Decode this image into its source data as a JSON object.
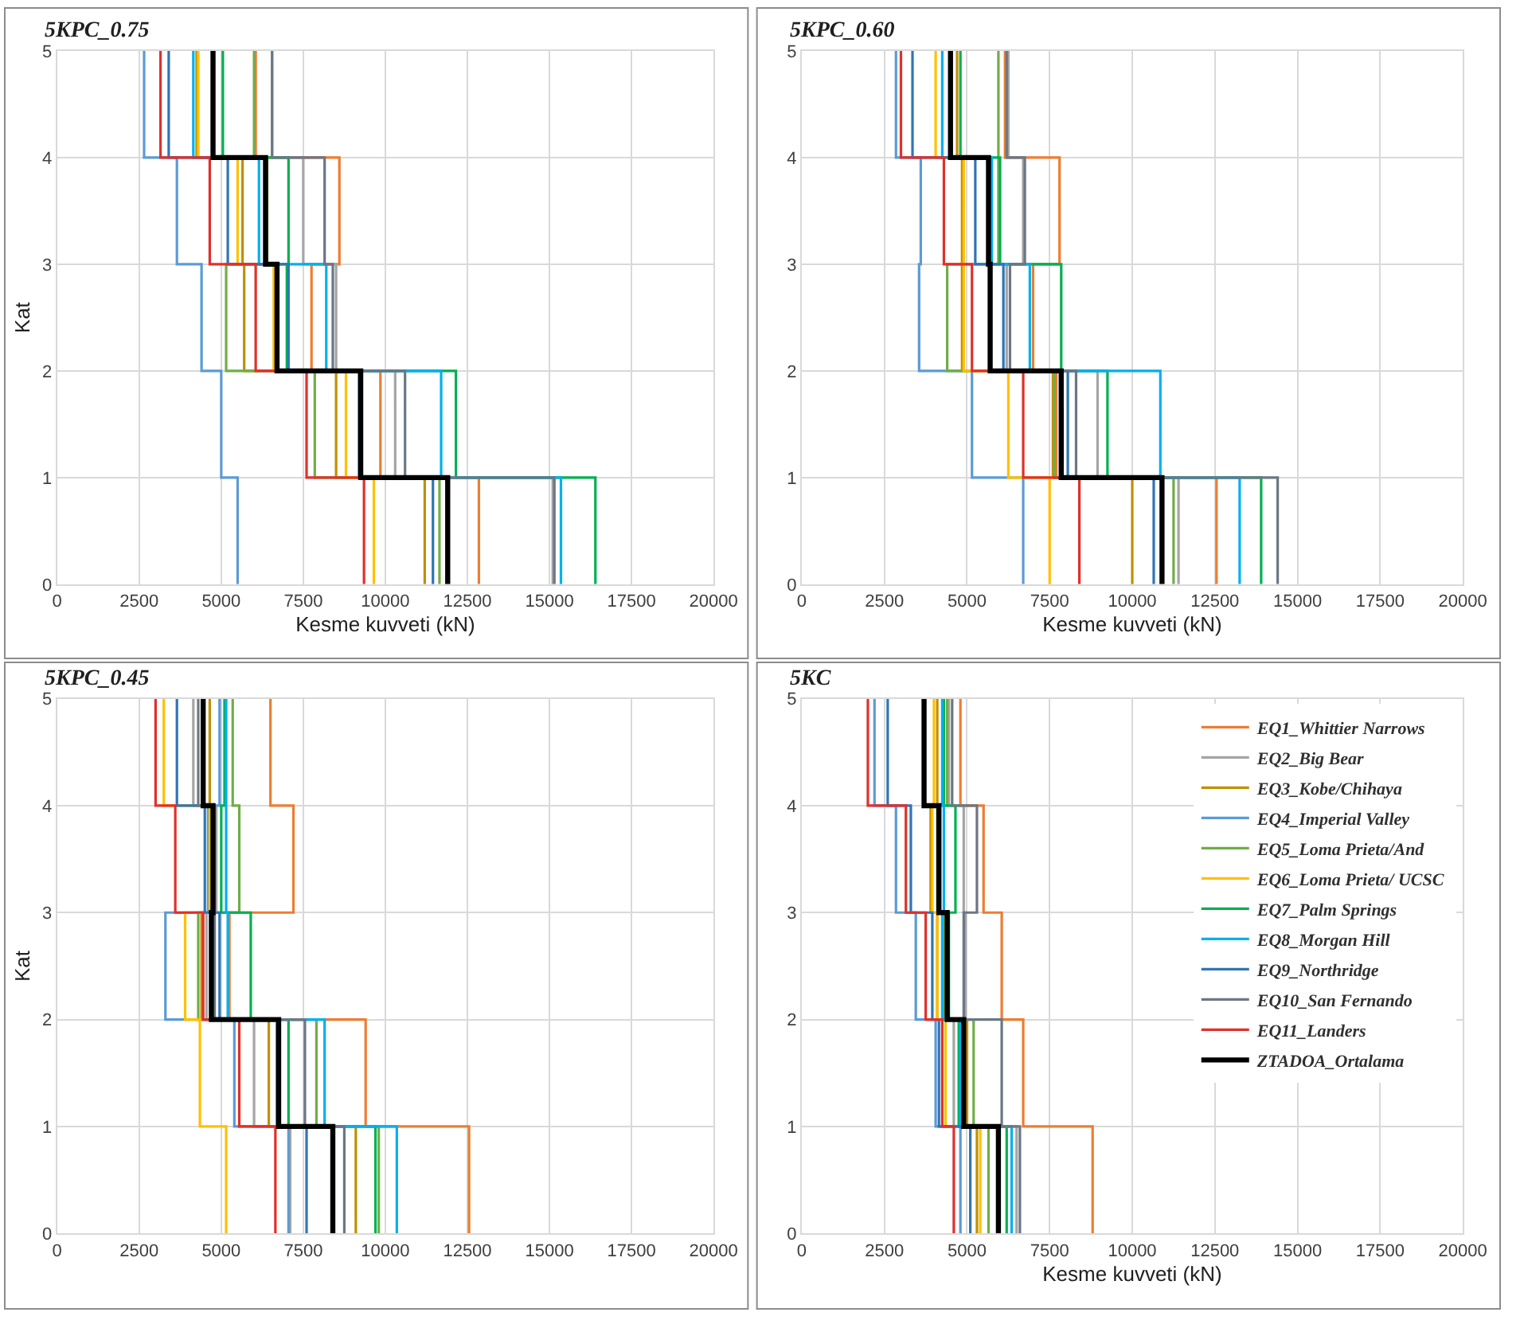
{
  "chart_data": [
    {
      "type": "line",
      "title": "5KPC_0.75",
      "xlabel": "Kesme kuvveti (kN)",
      "ylabel": "Kat",
      "xlim": [
        0,
        20000
      ],
      "xticks": [
        0,
        2500,
        5000,
        7500,
        10000,
        12500,
        15000,
        17500,
        20000
      ],
      "ylim": [
        0,
        5
      ],
      "yticks": [
        0,
        1,
        2,
        3,
        4,
        5
      ],
      "grid": true,
      "legend": false,
      "line_style": "solid",
      "series": [
        {
          "color": "#ed7d31",
          "x": [
            12850,
            12850,
            9850,
            9850,
            7750,
            7750,
            8600,
            8600,
            6050,
            6050
          ],
          "values": [
            0,
            1,
            1,
            2,
            2,
            3,
            3,
            4,
            4,
            5
          ]
        },
        {
          "color": "#a5a5a5",
          "x": [
            15100,
            15100,
            10300,
            10300,
            8500,
            8500,
            7500,
            7500,
            6550,
            6550
          ],
          "values": [
            0,
            1,
            1,
            2,
            2,
            3,
            3,
            4,
            4,
            5
          ]
        },
        {
          "color": "#bf9000",
          "x": [
            11200,
            11200,
            8500,
            8500,
            5700,
            5700,
            5650,
            5650,
            4250,
            4250
          ],
          "values": [
            0,
            1,
            1,
            2,
            2,
            3,
            3,
            4,
            4,
            5
          ]
        },
        {
          "color": "#5b9bd5",
          "x": [
            5500,
            5500,
            5000,
            5000,
            4400,
            4400,
            3650,
            3650,
            2650,
            2650
          ],
          "values": [
            0,
            1,
            1,
            2,
            2,
            3,
            3,
            4,
            4,
            5
          ]
        },
        {
          "color": "#70ad47",
          "x": [
            11650,
            11650,
            7850,
            7850,
            5150,
            5150,
            6400,
            6400,
            6000,
            6000
          ],
          "values": [
            0,
            1,
            1,
            2,
            2,
            3,
            3,
            4,
            4,
            5
          ]
        },
        {
          "color": "#ffc000",
          "x": [
            9650,
            9650,
            8800,
            8800,
            6600,
            6600,
            5500,
            5500,
            4300,
            4300
          ],
          "values": [
            0,
            1,
            1,
            2,
            2,
            3,
            3,
            4,
            4,
            5
          ]
        },
        {
          "color": "#00b050",
          "x": [
            16400,
            16400,
            12150,
            12150,
            7000,
            7000,
            7050,
            7050,
            5050,
            5050
          ],
          "values": [
            0,
            1,
            1,
            2,
            2,
            3,
            3,
            4,
            4,
            5
          ]
        },
        {
          "color": "#00b0f0",
          "x": [
            15350,
            15350,
            11700,
            11700,
            8200,
            8200,
            6150,
            6150,
            4150,
            4150
          ],
          "values": [
            0,
            1,
            1,
            2,
            2,
            3,
            3,
            4,
            4,
            5
          ]
        },
        {
          "color": "#2e75b6",
          "x": [
            11450,
            11450,
            9200,
            9200,
            7050,
            7050,
            5200,
            5200,
            3400,
            3400
          ],
          "values": [
            0,
            1,
            1,
            2,
            2,
            3,
            3,
            4,
            4,
            5
          ]
        },
        {
          "color": "#6b7785",
          "x": [
            15150,
            15150,
            10600,
            10600,
            8400,
            8400,
            8150,
            8150,
            6550,
            6550
          ],
          "values": [
            0,
            1,
            1,
            2,
            2,
            3,
            3,
            4,
            4,
            5
          ]
        },
        {
          "color": "#e0302b",
          "x": [
            9350,
            9350,
            7600,
            7600,
            6050,
            6050,
            4650,
            4650,
            3150,
            3150
          ],
          "values": [
            0,
            1,
            1,
            2,
            2,
            3,
            3,
            4,
            4,
            5
          ]
        },
        {
          "color": "#000000",
          "x": [
            11900,
            11900,
            9250,
            9250,
            6700,
            6700,
            6350,
            6350,
            4750,
            4750
          ],
          "values": [
            0,
            1,
            1,
            2,
            2,
            3,
            3,
            4,
            4,
            5
          ]
        }
      ]
    },
    {
      "type": "line",
      "title": "5KPC_0.60",
      "xlabel": "Kesme kuvveti (kN)",
      "xlim": [
        0,
        20000
      ],
      "xticks": [
        0,
        2500,
        5000,
        7500,
        10000,
        12500,
        15000,
        17500,
        20000
      ],
      "ylim": [
        0,
        5
      ],
      "yticks": [
        0,
        1,
        2,
        3,
        4,
        5
      ],
      "grid": true,
      "legend": false,
      "line_style": "solid",
      "series": [
        {
          "color": "#ed7d31",
          "x": [
            12550,
            12550,
            7700,
            7700,
            7000,
            7000,
            7800,
            7800,
            6150,
            6150
          ],
          "values": [
            0,
            1,
            1,
            2,
            2,
            3,
            3,
            4,
            4,
            5
          ]
        },
        {
          "color": "#a5a5a5",
          "x": [
            11400,
            11400,
            8950,
            8950,
            6200,
            6200,
            6700,
            6700,
            6250,
            6250
          ],
          "values": [
            0,
            1,
            1,
            2,
            2,
            3,
            3,
            4,
            4,
            5
          ]
        },
        {
          "color": "#bf9000",
          "x": [
            10000,
            10000,
            7600,
            7600,
            4850,
            4850,
            4850,
            4850,
            4700,
            4700
          ],
          "values": [
            0,
            1,
            1,
            2,
            2,
            3,
            3,
            4,
            4,
            5
          ]
        },
        {
          "color": "#5b9bd5",
          "x": [
            6700,
            6700,
            5150,
            5150,
            3550,
            3550,
            3600,
            3600,
            2850,
            2850
          ],
          "values": [
            0,
            1,
            1,
            2,
            2,
            3,
            3,
            4,
            4,
            5
          ]
        },
        {
          "color": "#70ad47",
          "x": [
            11250,
            11250,
            7650,
            7650,
            4400,
            4400,
            5950,
            5950,
            5950,
            5950
          ],
          "values": [
            0,
            1,
            1,
            2,
            2,
            3,
            3,
            4,
            4,
            5
          ]
        },
        {
          "color": "#ffc000",
          "x": [
            7500,
            7500,
            6250,
            6250,
            4900,
            4900,
            4900,
            4900,
            4050,
            4050
          ],
          "values": [
            0,
            1,
            1,
            2,
            2,
            3,
            3,
            4,
            4,
            5
          ]
        },
        {
          "color": "#00b050",
          "x": [
            13900,
            13900,
            9250,
            9250,
            7850,
            7850,
            6000,
            6000,
            4800,
            4800
          ],
          "values": [
            0,
            1,
            1,
            2,
            2,
            3,
            3,
            4,
            4,
            5
          ]
        },
        {
          "color": "#00b0f0",
          "x": [
            13250,
            13250,
            10850,
            10850,
            6900,
            6900,
            5750,
            5750,
            4250,
            4250
          ],
          "values": [
            0,
            1,
            1,
            2,
            2,
            3,
            3,
            4,
            4,
            5
          ]
        },
        {
          "color": "#2e75b6",
          "x": [
            10650,
            10650,
            8050,
            8050,
            6100,
            6100,
            5250,
            5250,
            3350,
            3350
          ],
          "values": [
            0,
            1,
            1,
            2,
            2,
            3,
            3,
            4,
            4,
            5
          ]
        },
        {
          "color": "#6b7785",
          "x": [
            14400,
            14400,
            8300,
            8300,
            6300,
            6300,
            6750,
            6750,
            6200,
            6200
          ],
          "values": [
            0,
            1,
            1,
            2,
            2,
            3,
            3,
            4,
            4,
            5
          ]
        },
        {
          "color": "#e0302b",
          "x": [
            8400,
            8400,
            6700,
            6700,
            5150,
            5150,
            4300,
            4300,
            3000,
            3000
          ],
          "values": [
            0,
            1,
            1,
            2,
            2,
            3,
            3,
            4,
            4,
            5
          ]
        },
        {
          "color": "#000000",
          "x": [
            10900,
            10900,
            7850,
            7850,
            5700,
            5700,
            5650,
            5650,
            4500,
            4500
          ],
          "values": [
            0,
            1,
            1,
            2,
            2,
            3,
            3,
            4,
            4,
            5
          ]
        }
      ]
    },
    {
      "type": "line",
      "title": "5KPC_0.45",
      "ylabel": "Kat",
      "xlim": [
        0,
        20000
      ],
      "xticks": [
        0,
        2500,
        5000,
        7500,
        10000,
        12500,
        15000,
        17500,
        20000
      ],
      "ylim": [
        0,
        5
      ],
      "yticks": [
        0,
        1,
        2,
        3,
        4,
        5
      ],
      "grid": true,
      "legend": false,
      "line_style": "solid",
      "series": [
        {
          "color": "#ed7d31",
          "x": [
            12550,
            12550,
            9400,
            9400,
            5250,
            5250,
            7200,
            7200,
            6500,
            6500
          ],
          "values": [
            0,
            1,
            1,
            2,
            2,
            3,
            3,
            4,
            4,
            5
          ]
        },
        {
          "color": "#a5a5a5",
          "x": [
            7100,
            7100,
            6000,
            6000,
            4550,
            4550,
            4850,
            4850,
            4150,
            4150
          ],
          "values": [
            0,
            1,
            1,
            2,
            2,
            3,
            3,
            4,
            4,
            5
          ]
        },
        {
          "color": "#bf9000",
          "x": [
            9100,
            9100,
            6450,
            6450,
            4400,
            4400,
            4700,
            4700,
            4650,
            4650
          ],
          "values": [
            0,
            1,
            1,
            2,
            2,
            3,
            3,
            4,
            4,
            5
          ]
        },
        {
          "color": "#5b9bd5",
          "x": [
            7050,
            7050,
            5400,
            5400,
            3300,
            3300,
            4600,
            4600,
            4950,
            4950
          ],
          "values": [
            0,
            1,
            1,
            2,
            2,
            3,
            3,
            4,
            4,
            5
          ]
        },
        {
          "color": "#70ad47",
          "x": [
            9800,
            9800,
            7900,
            7900,
            4300,
            4300,
            5550,
            5550,
            5350,
            5350
          ],
          "values": [
            0,
            1,
            1,
            2,
            2,
            3,
            3,
            4,
            4,
            5
          ]
        },
        {
          "color": "#ffc000",
          "x": [
            5150,
            5150,
            4350,
            4350,
            3900,
            3900,
            4650,
            4650,
            3250,
            3250
          ],
          "values": [
            0,
            1,
            1,
            2,
            2,
            3,
            3,
            4,
            4,
            5
          ]
        },
        {
          "color": "#00b050",
          "x": [
            9700,
            9700,
            7050,
            7050,
            5900,
            5900,
            5000,
            5000,
            5100,
            5100
          ],
          "values": [
            0,
            1,
            1,
            2,
            2,
            3,
            3,
            4,
            4,
            5
          ]
        },
        {
          "color": "#00b0f0",
          "x": [
            10350,
            10350,
            8150,
            8150,
            5200,
            5200,
            5150,
            5150,
            5150,
            5150
          ],
          "values": [
            0,
            1,
            1,
            2,
            2,
            3,
            3,
            4,
            4,
            5
          ]
        },
        {
          "color": "#2e75b6",
          "x": [
            7600,
            7600,
            6700,
            6700,
            4950,
            4950,
            4500,
            4500,
            3650,
            3650
          ],
          "values": [
            0,
            1,
            1,
            2,
            2,
            3,
            3,
            4,
            4,
            5
          ]
        },
        {
          "color": "#6b7785",
          "x": [
            8750,
            8750,
            7550,
            7550,
            4800,
            4800,
            4800,
            4800,
            4300,
            4300
          ],
          "values": [
            0,
            1,
            1,
            2,
            2,
            3,
            3,
            4,
            4,
            5
          ]
        },
        {
          "color": "#e0302b",
          "x": [
            6650,
            6650,
            5550,
            5550,
            4450,
            4450,
            3600,
            3600,
            3000,
            3000
          ],
          "values": [
            0,
            1,
            1,
            2,
            2,
            3,
            3,
            4,
            4,
            5
          ]
        },
        {
          "color": "#000000",
          "x": [
            8400,
            8400,
            6750,
            6750,
            4700,
            4700,
            4750,
            4750,
            4450,
            4450
          ],
          "values": [
            0,
            1,
            1,
            2,
            2,
            3,
            3,
            4,
            4,
            5
          ]
        }
      ]
    },
    {
      "type": "line",
      "title": "5KC",
      "xlabel": "Kesme kuvveti (kN)",
      "xlim": [
        0,
        20000
      ],
      "xticks": [
        0,
        2500,
        5000,
        7500,
        10000,
        12500,
        15000,
        17500,
        20000
      ],
      "ylim": [
        0,
        5
      ],
      "yticks": [
        0,
        1,
        2,
        3,
        4,
        5
      ],
      "grid": true,
      "legend": "top right",
      "line_style": "solid",
      "series": [
        {
          "name": "EQ1_Whittier Narrows",
          "color": "#ed7d31",
          "x": [
            8800,
            8800,
            6700,
            6700,
            6050,
            6050,
            5500,
            5500,
            4800,
            4800
          ],
          "values": [
            0,
            1,
            1,
            2,
            2,
            3,
            3,
            4,
            4,
            5
          ]
        },
        {
          "name": "EQ2_Big Bear",
          "color": "#a5a5a5",
          "x": [
            6500,
            6500,
            4600,
            4600,
            4950,
            4950,
            4900,
            4900,
            4450,
            4450
          ],
          "values": [
            0,
            1,
            1,
            2,
            2,
            3,
            3,
            4,
            4,
            5
          ]
        },
        {
          "name": "EQ3_Kobe/Chihaya",
          "color": "#bf9000",
          "x": [
            5300,
            5300,
            5000,
            5000,
            4100,
            4100,
            3900,
            3900,
            4100,
            4100
          ],
          "values": [
            0,
            1,
            1,
            2,
            2,
            3,
            3,
            4,
            4,
            5
          ]
        },
        {
          "name": "EQ4_Imperial Valley",
          "color": "#5b9bd5",
          "x": [
            4800,
            4800,
            4050,
            4050,
            3450,
            3450,
            2850,
            2850,
            2200,
            2200
          ],
          "values": [
            0,
            1,
            1,
            2,
            2,
            3,
            3,
            4,
            4,
            5
          ]
        },
        {
          "name": "EQ5_Loma Prieta/And",
          "color": "#70ad47",
          "x": [
            5650,
            5650,
            5200,
            5200,
            4300,
            4300,
            4100,
            4100,
            4400,
            4400
          ],
          "values": [
            0,
            1,
            1,
            2,
            2,
            3,
            3,
            4,
            4,
            5
          ]
        },
        {
          "name": "EQ6_Loma Prieta/ UCSC",
          "color": "#ffc000",
          "x": [
            5400,
            5400,
            4350,
            4350,
            4100,
            4100,
            3950,
            3950,
            4000,
            4000
          ],
          "values": [
            0,
            1,
            1,
            2,
            2,
            3,
            3,
            4,
            4,
            5
          ]
        },
        {
          "name": "EQ7_Palm Springs",
          "color": "#00b050",
          "x": [
            6200,
            6200,
            4750,
            4750,
            4450,
            4450,
            4650,
            4650,
            4300,
            4300
          ],
          "values": [
            0,
            1,
            1,
            2,
            2,
            3,
            3,
            4,
            4,
            5
          ]
        },
        {
          "name": "EQ8_Morgan Hill",
          "color": "#00b0f0",
          "x": [
            6350,
            6350,
            4800,
            4800,
            4250,
            4250,
            4300,
            4300,
            4250,
            4250
          ],
          "values": [
            0,
            1,
            1,
            2,
            2,
            3,
            3,
            4,
            4,
            5
          ]
        },
        {
          "name": "EQ9_Northridge",
          "color": "#2e75b6",
          "x": [
            5100,
            5100,
            4150,
            4150,
            3950,
            3950,
            3300,
            3300,
            2600,
            2600
          ],
          "values": [
            0,
            1,
            1,
            2,
            2,
            3,
            3,
            4,
            4,
            5
          ]
        },
        {
          "name": "EQ10_San Fernando",
          "color": "#6b7785",
          "x": [
            6600,
            6600,
            6050,
            6050,
            4900,
            4900,
            5300,
            5300,
            4550,
            4550
          ],
          "values": [
            0,
            1,
            1,
            2,
            2,
            3,
            3,
            4,
            4,
            5
          ]
        },
        {
          "name": "EQ11_Landers",
          "color": "#e0302b",
          "x": [
            4600,
            4600,
            4250,
            4250,
            3750,
            3750,
            3150,
            3150,
            2000,
            2000
          ],
          "values": [
            0,
            1,
            1,
            2,
            2,
            3,
            3,
            4,
            4,
            5
          ]
        },
        {
          "name": "ZTADOA_Ortalama",
          "color": "#000000",
          "x": [
            5950,
            5950,
            4900,
            4900,
            4400,
            4400,
            4150,
            4150,
            3700,
            3700
          ],
          "values": [
            0,
            1,
            1,
            2,
            2,
            3,
            3,
            4,
            4,
            5
          ]
        }
      ]
    }
  ]
}
